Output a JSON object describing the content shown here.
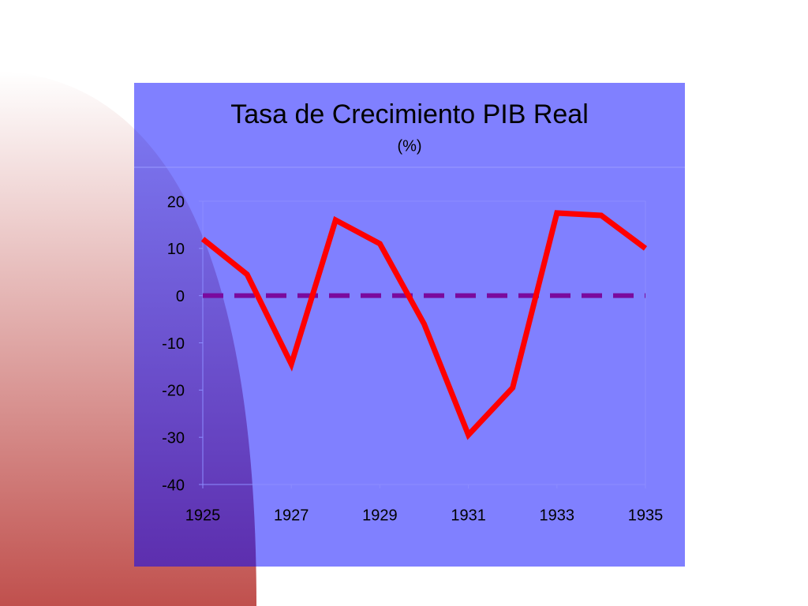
{
  "chart_data": {
    "type": "line",
    "title": "Tasa de Crecimiento PIB Real",
    "subtitle": "(%)",
    "x": [
      1925,
      1926,
      1927,
      1928,
      1929,
      1930,
      1931,
      1932,
      1933,
      1934,
      1935
    ],
    "series": [
      {
        "color": "#ff0000",
        "values": [
          12,
          4.5,
          -14.5,
          16,
          11,
          -6,
          -29.5,
          -19.5,
          17.5,
          17,
          10
        ]
      }
    ],
    "reference_line": {
      "value": 0,
      "color": "#7a0a9e",
      "dashed": true
    },
    "xlim": [
      1925,
      1935
    ],
    "xticks": [
      1925,
      1927,
      1929,
      1931,
      1933,
      1935
    ],
    "ylim": [
      -40,
      20
    ],
    "yticks": [
      -40,
      -30,
      -20,
      -10,
      0,
      10,
      20
    ],
    "grid": false
  }
}
